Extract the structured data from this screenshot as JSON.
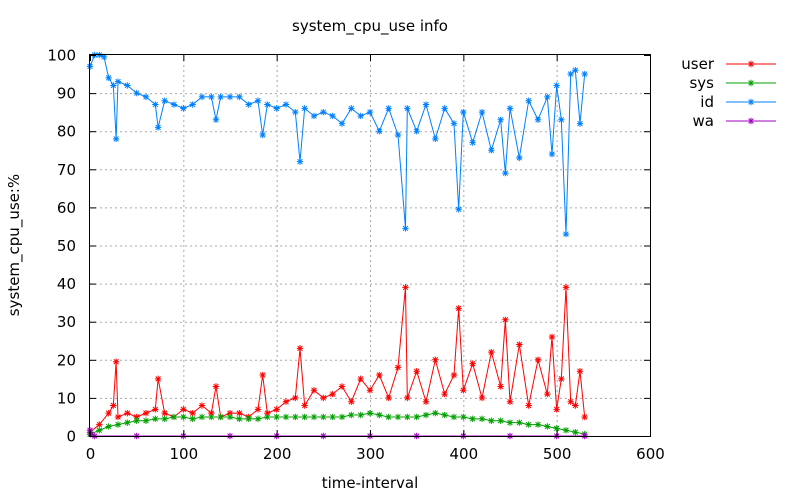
{
  "chart_data": {
    "type": "line",
    "title": "system_cpu_use info",
    "xlabel": "time-interval",
    "ylabel": "system_cpu_use:%",
    "xlim": [
      0,
      600
    ],
    "ylim": [
      0,
      100
    ],
    "x_ticks": [
      0,
      100,
      200,
      300,
      400,
      500,
      600
    ],
    "y_ticks": [
      0,
      10,
      20,
      30,
      40,
      50,
      60,
      70,
      80,
      90,
      100
    ],
    "x_tick_labels": [
      "0",
      "100",
      "200",
      "300",
      "400",
      "500",
      "600"
    ],
    "y_tick_labels": [
      "0",
      "10",
      "20",
      "30",
      "40",
      "50",
      "60",
      "70",
      "80",
      "90",
      "100"
    ],
    "grid": true,
    "legend_position": "outside-top-right",
    "marker": "asterisk",
    "series": [
      {
        "name": "user",
        "color": "#ff0000",
        "x": [
          0,
          10,
          20,
          25,
          28,
          30,
          40,
          50,
          60,
          70,
          73,
          80,
          90,
          100,
          110,
          120,
          130,
          135,
          140,
          150,
          160,
          170,
          180,
          185,
          190,
          200,
          210,
          220,
          225,
          230,
          240,
          250,
          260,
          270,
          280,
          290,
          300,
          310,
          320,
          330,
          338,
          340,
          350,
          360,
          370,
          380,
          390,
          395,
          400,
          410,
          420,
          430,
          440,
          445,
          450,
          460,
          470,
          480,
          490,
          495,
          500,
          505,
          510,
          515,
          520,
          525,
          530
        ],
        "values": [
          1,
          3,
          6,
          8,
          19.5,
          5,
          6,
          5,
          6,
          7,
          15,
          6,
          5,
          7,
          6,
          8,
          6,
          13,
          5,
          6,
          6,
          5,
          7,
          16,
          6,
          7,
          9,
          10,
          23,
          8,
          12,
          10,
          11,
          13,
          9,
          15,
          12,
          16,
          10,
          18,
          39,
          10,
          17,
          9,
          20,
          11,
          16,
          33.5,
          12,
          19,
          10,
          22,
          13,
          30.5,
          9,
          24,
          8,
          20,
          11,
          26,
          7,
          15,
          39,
          9,
          8,
          17,
          5
        ]
      },
      {
        "name": "sys",
        "color": "#00a000",
        "x": [
          0,
          10,
          20,
          30,
          40,
          50,
          60,
          70,
          80,
          90,
          100,
          110,
          120,
          130,
          140,
          150,
          160,
          170,
          180,
          190,
          200,
          210,
          220,
          230,
          240,
          250,
          260,
          270,
          280,
          290,
          300,
          310,
          320,
          330,
          340,
          350,
          360,
          370,
          380,
          390,
          400,
          410,
          420,
          430,
          440,
          450,
          460,
          470,
          480,
          490,
          500,
          510,
          520,
          530
        ],
        "values": [
          0.5,
          1.5,
          2.5,
          3,
          3.5,
          4,
          4,
          4.5,
          4.5,
          5,
          5,
          4.5,
          5,
          5,
          5,
          5,
          4.5,
          4.5,
          4.5,
          5,
          5,
          5,
          5,
          5,
          5,
          5,
          5,
          5,
          5.5,
          5.5,
          6,
          5.5,
          5,
          5,
          5,
          5,
          5.5,
          6,
          5.5,
          5,
          5,
          4.5,
          4.5,
          4,
          4,
          3.5,
          3.5,
          3,
          3,
          2.5,
          2,
          1.5,
          1,
          0.5
        ]
      },
      {
        "name": "id",
        "color": "#0080ff",
        "x": [
          0,
          5,
          10,
          15,
          20,
          25,
          28,
          30,
          40,
          50,
          60,
          70,
          73,
          80,
          90,
          100,
          110,
          120,
          130,
          135,
          140,
          150,
          160,
          170,
          180,
          185,
          190,
          200,
          210,
          220,
          225,
          230,
          240,
          250,
          260,
          270,
          280,
          290,
          300,
          310,
          320,
          330,
          338,
          340,
          350,
          360,
          370,
          380,
          390,
          395,
          400,
          410,
          420,
          430,
          440,
          445,
          450,
          460,
          470,
          480,
          490,
          495,
          500,
          505,
          510,
          515,
          520,
          525,
          530
        ],
        "values": [
          97,
          100,
          100,
          99.5,
          94,
          92,
          78,
          93,
          92,
          90,
          89,
          87,
          81,
          88,
          87,
          86,
          87,
          89,
          89,
          83,
          89,
          89,
          89,
          87,
          88,
          79,
          87,
          86,
          87,
          85,
          72,
          86,
          84,
          85,
          84,
          82,
          86,
          84,
          85,
          80,
          86,
          79,
          54.5,
          86,
          80,
          87,
          78,
          86,
          82,
          59.5,
          85,
          77,
          85,
          75,
          83,
          69,
          86,
          73,
          88,
          83,
          89,
          74,
          92,
          83,
          53,
          95,
          96,
          82,
          95
        ]
      },
      {
        "name": "wa",
        "color": "#a000c0",
        "x": [
          0,
          1,
          5,
          50,
          100,
          150,
          200,
          250,
          300,
          350,
          400,
          450,
          500,
          530
        ],
        "values": [
          1.5,
          0.5,
          0,
          0,
          0,
          0,
          0,
          0,
          0,
          0,
          0,
          0,
          0,
          0
        ]
      }
    ]
  }
}
